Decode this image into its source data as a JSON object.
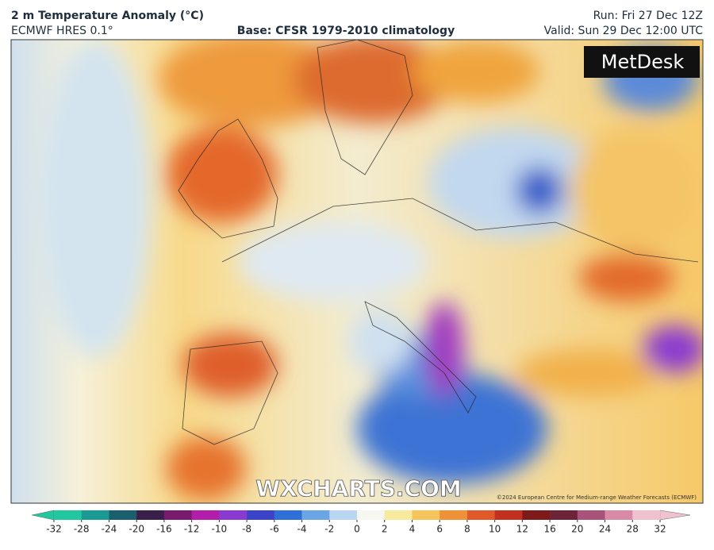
{
  "header": {
    "title": "2 m Temperature Anomaly (°C)",
    "model": "ECMWF HRES 0.1°",
    "base": "Base: CFSR 1979-2010 climatology",
    "run": "Run: Fri 27 Dec 12Z",
    "valid": "Valid: Sun 29 Dec 12:00 UTC"
  },
  "map": {
    "brand": "MetDesk",
    "watermark": "WXCHARTS.COM",
    "credit": "©2024 European Centre for Medium-range Weather Forecasts (ECMWF)"
  },
  "colorbar": {
    "ticks": [
      -32,
      -28,
      -24,
      -20,
      -16,
      -12,
      -10,
      -8,
      -6,
      -4,
      -2,
      0,
      2,
      4,
      6,
      8,
      10,
      12,
      16,
      20,
      24,
      28,
      32
    ],
    "colors": [
      "#22c7a0",
      "#1b9a93",
      "#1a5f6e",
      "#3a1f4a",
      "#7a1a6e",
      "#b21eaa",
      "#8a3ad0",
      "#3b44c8",
      "#2f6fd8",
      "#6aa6e6",
      "#b9d6f2",
      "#f7f7f2",
      "#f8ea9c",
      "#f5c45a",
      "#ef9136",
      "#e0592a",
      "#c2301e",
      "#7e1a1a",
      "#6d2438",
      "#a9537a",
      "#d88aa6",
      "#f0c2d0"
    ]
  }
}
